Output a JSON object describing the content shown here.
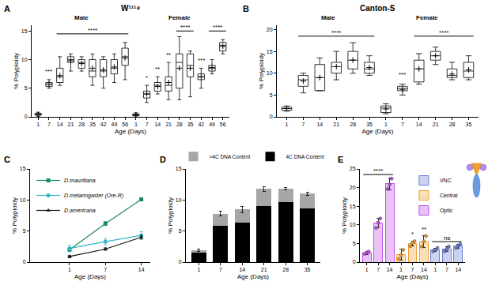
{
  "chart_data": [
    {
      "panel": "A",
      "type": "box",
      "title": "W¹¹¹⁸",
      "x_label": "Age (Days)",
      "y_label": "% Polyploidy",
      "categories": [
        "1",
        "7",
        "14",
        "21",
        "28",
        "35",
        "42",
        "49",
        "56",
        "1",
        "7",
        "14",
        "21",
        "28",
        "35",
        "42",
        "49",
        "56"
      ],
      "groups": [
        {
          "label": "Male",
          "span": [
            0,
            8
          ]
        },
        {
          "label": "Female",
          "span": [
            9,
            17
          ]
        }
      ],
      "q1": [
        0.3,
        5.3,
        6,
        9.5,
        8.5,
        7,
        7,
        7.5,
        9,
        0.2,
        3.3,
        4.5,
        4.5,
        5,
        7,
        6.5,
        8,
        11.5
      ],
      "median": [
        0.4,
        5.7,
        7,
        10,
        9.5,
        8,
        8,
        8.5,
        10.5,
        0.3,
        4,
        5.5,
        5.5,
        9.5,
        9,
        7,
        8.5,
        12.5
      ],
      "q3": [
        0.6,
        6,
        8.5,
        10.5,
        10,
        10,
        10,
        10,
        12,
        0.5,
        4.5,
        6,
        7,
        11,
        11,
        7.5,
        9,
        13
      ],
      "lower": [
        0.1,
        5,
        5.5,
        8,
        8,
        5.5,
        5,
        6,
        6.5,
        0,
        2.5,
        4,
        3,
        3,
        3.5,
        5,
        7.5,
        11
      ],
      "upper": [
        0.8,
        6.5,
        10.5,
        11,
        10.5,
        11,
        10.5,
        11,
        13,
        0.7,
        5.5,
        7,
        9.5,
        14,
        11.5,
        8.5,
        10,
        13.5
      ],
      "mean": [
        0.4,
        5.7,
        7.2,
        9.8,
        9.3,
        8.5,
        8.2,
        8.7,
        10.3,
        0.35,
        4,
        5.3,
        6,
        8.5,
        8.5,
        7,
        8.6,
        12.3
      ],
      "ylim": [
        0,
        16
      ],
      "yticks": [
        0,
        5,
        10,
        15
      ],
      "annotations": [
        {
          "text": "***",
          "x": 1,
          "y": 7
        },
        {
          "text": "****",
          "span": [
            2,
            8
          ],
          "y": 14.5
        },
        {
          "text": "*",
          "x": 10,
          "y": 6
        },
        {
          "text": "**",
          "x": 11,
          "y": 7.5
        },
        {
          "text": "**",
          "x": 12,
          "y": 10
        },
        {
          "text": "****",
          "span": [
            13,
            14
          ],
          "y": 15
        },
        {
          "text": "***",
          "x": 15,
          "y": 9
        },
        {
          "text": "****",
          "span": [
            16,
            17
          ],
          "y": 15
        }
      ]
    },
    {
      "panel": "B",
      "type": "box",
      "title": "Canton-S",
      "x_label": "Age (Days)",
      "y_label": "% Polyploidy",
      "categories": [
        "1",
        "7",
        "14",
        "21",
        "28",
        "35",
        "1",
        "7",
        "14",
        "21",
        "28",
        "35"
      ],
      "groups": [
        {
          "label": "Male",
          "span": [
            0,
            5
          ]
        },
        {
          "label": "Female",
          "span": [
            6,
            11
          ]
        }
      ],
      "q1": [
        1.5,
        7,
        6,
        10,
        11,
        10,
        1,
        6,
        8,
        13,
        9,
        9
      ],
      "median": [
        1.9,
        8.5,
        9,
        11.5,
        13,
        11,
        2,
        6.5,
        11,
        14,
        9.5,
        10.5
      ],
      "q3": [
        2.2,
        9.5,
        12,
        12.5,
        15,
        12.5,
        2.5,
        7,
        13,
        15,
        11,
        12.5
      ],
      "lower": [
        1.3,
        5.5,
        6,
        8.5,
        10,
        9.5,
        0.7,
        5,
        7.5,
        12,
        8.5,
        8.5
      ],
      "upper": [
        2.5,
        10,
        13.5,
        15,
        17,
        14,
        3,
        7.5,
        14.5,
        16,
        12.5,
        14
      ],
      "mean": [
        1.9,
        8.2,
        9,
        11.5,
        13,
        11.3,
        1.8,
        6.3,
        11,
        14,
        9.8,
        10.8
      ],
      "ylim": [
        0,
        21
      ],
      "yticks": [
        0,
        5,
        10,
        15,
        20
      ],
      "annotations": [
        {
          "text": "****",
          "span": [
            1,
            5
          ],
          "y": 18.5
        },
        {
          "text": "***",
          "x": 7,
          "y": 8.5
        },
        {
          "text": "****",
          "span": [
            8,
            11
          ],
          "y": 18.5
        }
      ]
    },
    {
      "panel": "C",
      "type": "line",
      "x_label": "Age (Days)",
      "y_label": "% Polyploidy",
      "categories": [
        "1",
        "7",
        "14"
      ],
      "series": [
        {
          "name": "D.mauritiana",
          "color": "#1a8a5a",
          "marker": "square",
          "values": [
            2,
            6.2,
            10.1
          ],
          "errors": [
            0.3,
            0.3,
            0.2
          ]
        },
        {
          "name": "D.melanogaster (Ore-R)",
          "color": "#33b5c8",
          "marker": "circle",
          "values": [
            2.2,
            3.3,
            4.3
          ],
          "errors": [
            0.5,
            0.5,
            0.6
          ]
        },
        {
          "name": "D.americana",
          "color": "#111111",
          "marker": "triangle-up",
          "values": [
            0.9,
            2.1,
            4.0
          ],
          "errors": [
            0.2,
            0.2,
            0.3
          ]
        }
      ],
      "ylim": [
        0,
        15
      ],
      "yticks": [
        0,
        5,
        10,
        15
      ],
      "legend": "upper left"
    },
    {
      "panel": "D",
      "type": "bar",
      "stacked": true,
      "x_label": "Age (Days)",
      "y_label": "% Polyploidy",
      "categories": [
        "1",
        "7",
        "14",
        "21",
        "28",
        "35"
      ],
      "series": [
        {
          "name": "4C DNA Content",
          "color": "#000000",
          "values": [
            1.5,
            5.8,
            6.3,
            9,
            9.7,
            8.7
          ]
        },
        {
          "name": ">4C DNA Content",
          "color": "#a6a6a6",
          "values": [
            0.4,
            2,
            2.2,
            2.8,
            2.1,
            2.3
          ],
          "errors": [
            0.2,
            0.4,
            0.5,
            0.4,
            0.2,
            0.3
          ]
        }
      ],
      "ylim": [
        0,
        15
      ],
      "yticks": [
        0,
        5,
        10,
        15
      ],
      "legend": "top"
    },
    {
      "panel": "E",
      "type": "bar",
      "x_label": "Age (Days)",
      "y_label": "% Polyploidy",
      "categories": [
        "1",
        "7",
        "14",
        "1",
        "7",
        "14",
        "1",
        "7",
        "14"
      ],
      "series": [
        {
          "name": "Optic",
          "color": "#c04fe8",
          "values": [
            2.5,
            10.5,
            21,
            null,
            null,
            null,
            null,
            null,
            null
          ],
          "errors": [
            0.4,
            1.2,
            1.6,
            null,
            null,
            null,
            null,
            null,
            null
          ],
          "points": [
            [
              2.2,
              2.6,
              2.8
            ],
            [
              9.2,
              10.6,
              11.7
            ],
            [
              19.6,
              20.8,
              22.4
            ],
            null,
            null,
            null,
            null,
            null,
            null
          ]
        },
        {
          "name": "Central",
          "color": "#f0a030",
          "values": [
            null,
            null,
            null,
            2,
            5,
            5.5,
            null,
            null,
            null
          ],
          "errors": [
            null,
            null,
            null,
            1.5,
            0.7,
            1.5,
            null,
            null,
            null
          ],
          "points": [
            null,
            null,
            null,
            [
              0.8,
              1.9,
              3.3
            ],
            [
              4.3,
              5.2,
              5.6
            ],
            [
              4.2,
              5.6,
              7
            ],
            null,
            null,
            null
          ]
        },
        {
          "name": "VNC",
          "color": "#6b7fd7",
          "values": [
            null,
            null,
            null,
            null,
            null,
            null,
            3.3,
            3.5,
            4.3
          ],
          "errors": [
            null,
            null,
            null,
            null,
            null,
            null,
            0.5,
            0.7,
            0.5
          ],
          "points": [
            null,
            null,
            null,
            null,
            null,
            null,
            [
              2.9,
              3.3,
              3.8
            ],
            [
              2.9,
              3.5,
              4.2
            ],
            [
              3.8,
              4.3,
              4.8
            ]
          ]
        }
      ],
      "ylim": [
        0,
        25
      ],
      "yticks": [
        0,
        5,
        10,
        15,
        20,
        25
      ],
      "legend": "upper right",
      "annotations": [
        {
          "text": "****",
          "span": [
            0,
            2
          ],
          "y": 23.5
        },
        {
          "text": "*",
          "x": 4,
          "y": 6.2
        },
        {
          "text": "**",
          "x": 5,
          "y": 7.4
        },
        {
          "text": "ns",
          "span": [
            6,
            8
          ],
          "y": 5.5
        }
      ]
    }
  ]
}
